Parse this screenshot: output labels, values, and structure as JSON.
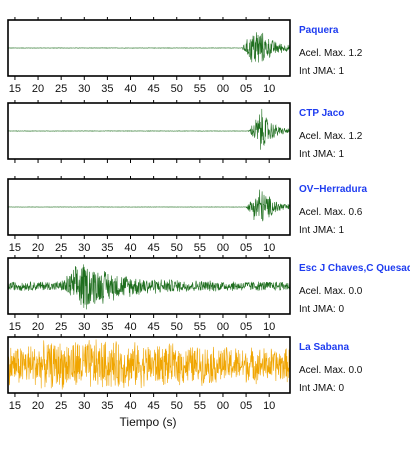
{
  "chart_data": {
    "type": "line",
    "xlabel": "Tiempo (s)",
    "x_tick_labels": [
      "15",
      "20",
      "25",
      "30",
      "35",
      "40",
      "45",
      "50",
      "55",
      "00",
      "05",
      "10"
    ],
    "panels": [
      {
        "name": "Paquera",
        "accel_label": "Acel. Max. 1.2",
        "jma_label": "Int JMA: 1",
        "color": "#1e6e1e",
        "show_ticks": true,
        "waveform": {
          "baseline_noise": 0.008,
          "onset_s": 64.0,
          "peak_s": 67.2,
          "peak_amplitude": 0.95,
          "decay_s": 3.5,
          "background": 0.0
        }
      },
      {
        "name": "CTP Jaco",
        "accel_label": "Acel. Max. 1.2",
        "jma_label": "Int JMA: 1",
        "color": "#1e6e1e",
        "show_ticks": false,
        "waveform": {
          "baseline_noise": 0.008,
          "onset_s": 65.5,
          "peak_s": 68.3,
          "peak_amplitude": 0.95,
          "decay_s": 2.5,
          "background": 0.0
        }
      },
      {
        "name": "OV−Herradura",
        "accel_label": "Acel. Max. 0.6",
        "jma_label": "Int JMA: 1",
        "color": "#1e6e1e",
        "show_ticks": true,
        "waveform": {
          "baseline_noise": 0.006,
          "onset_s": 65.0,
          "peak_s": 68.0,
          "peak_amplitude": 0.9,
          "decay_s": 3.0,
          "background": 0.0
        }
      },
      {
        "name": "Esc J Chaves,C Quesada",
        "accel_label": "Acel. Max. 0.0",
        "jma_label": "Int JMA: 0",
        "color": "#1e6e1e",
        "show_ticks": true,
        "waveform": {
          "baseline_noise": 0.04,
          "onset_s": 25.0,
          "peak_s": 29.5,
          "peak_amplitude": 0.9,
          "decay_s": 8.0,
          "background": 0.16
        }
      },
      {
        "name": "La Sabana",
        "accel_label": "Acel. Max. 0.0",
        "jma_label": "Int JMA: 0",
        "color": "#f0a500",
        "show_ticks": true,
        "waveform": {
          "baseline_noise": 0.3,
          "onset_s": 0.0,
          "peak_s": 30.0,
          "peak_amplitude": 0.5,
          "decay_s": 30.0,
          "background": 0.3
        }
      }
    ]
  }
}
